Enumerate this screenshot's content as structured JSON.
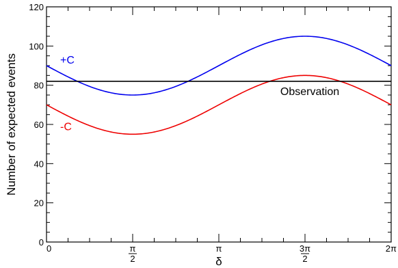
{
  "chart_data": {
    "type": "line",
    "title": "",
    "xlabel": "δ",
    "ylabel": "Number of expected events",
    "xlim": [
      0,
      6.2832
    ],
    "ylim": [
      0,
      120
    ],
    "x_ticks": [
      {
        "value": 0,
        "num": "0",
        "den": ""
      },
      {
        "value": 1.5708,
        "num": "π",
        "den": "2"
      },
      {
        "value": 3.1416,
        "num": "π",
        "den": ""
      },
      {
        "value": 4.7124,
        "num": "3π",
        "den": "2"
      },
      {
        "value": 6.2832,
        "num": "2π",
        "den": ""
      }
    ],
    "y_ticks": [
      0,
      20,
      40,
      60,
      80,
      100,
      120
    ],
    "series": [
      {
        "name": "+C",
        "color": "#0000ee",
        "formula": "90 - 15*sin(x)",
        "label_at": [
          0.25,
          91
        ]
      },
      {
        "name": "-C",
        "color": "#ee0000",
        "formula": "70 - 15*sin(x)",
        "label_at": [
          0.25,
          57
        ]
      }
    ],
    "hlines": [
      {
        "value": 82,
        "color": "#000000",
        "label": "Observation",
        "label_at": [
          4.8,
          75
        ]
      }
    ],
    "legend": "none",
    "grid": false
  }
}
